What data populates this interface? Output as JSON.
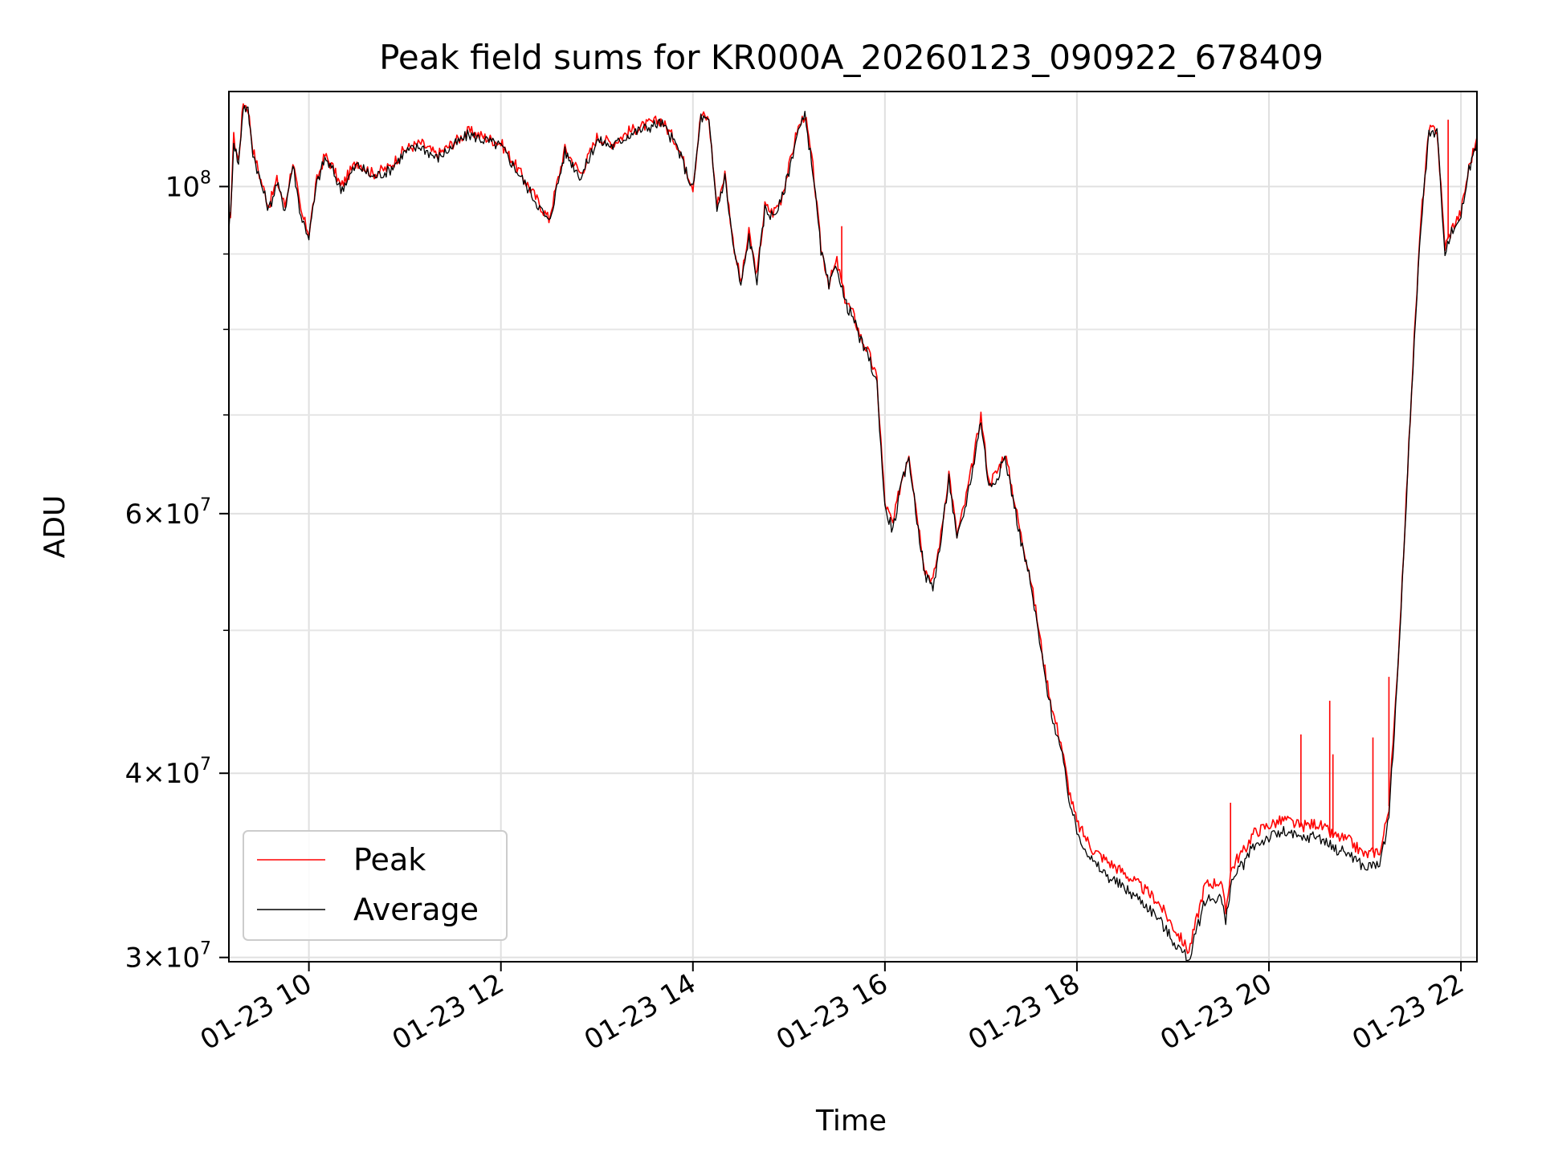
{
  "chart_data": {
    "type": "line",
    "title": "Peak field sums for KR000A_20260123_090922_678409",
    "xlabel": "Time",
    "ylabel": "ADU",
    "y_scale": "log",
    "grid": true,
    "legend_position": "lower-left",
    "xlim": [
      "2026-01-23 09:10",
      "2026-01-23 22:10"
    ],
    "ylim": [
      29800000,
      116000000
    ],
    "x_ticks": [
      "01-23 10",
      "01-23 12",
      "01-23 14",
      "01-23 16",
      "01-23 18",
      "01-23 20",
      "01-23 22"
    ],
    "y_ticks": [
      {
        "value": 30000000,
        "mantissa": "3",
        "exponent": "7"
      },
      {
        "value": 40000000,
        "mantissa": "4",
        "exponent": "7"
      },
      {
        "value": 60000000,
        "mantissa": "6",
        "exponent": "7"
      },
      {
        "value": 100000000,
        "mantissa": "",
        "exponent": "8"
      }
    ],
    "y_minor_ticks": [
      50000000,
      70000000,
      80000000,
      90000000
    ],
    "series": [
      {
        "name": "Peak",
        "color": "#ff0000",
        "x": [
          "09:10",
          "09:11",
          "09:13",
          "09:16",
          "09:19",
          "09:22",
          "09:25",
          "09:30",
          "09:35",
          "09:40",
          "09:45",
          "09:50",
          "09:55",
          "10:00",
          "10:05",
          "10:10",
          "10:15",
          "10:20",
          "10:25",
          "10:30",
          "10:40",
          "10:50",
          "11:00",
          "11:10",
          "11:20",
          "11:30",
          "11:40",
          "11:50",
          "12:00",
          "12:10",
          "12:20",
          "12:30",
          "12:40",
          "12:50",
          "13:00",
          "13:10",
          "13:20",
          "13:30",
          "13:40",
          "13:50",
          "14:00",
          "14:05",
          "14:10",
          "14:15",
          "14:20",
          "14:25",
          "14:30",
          "14:35",
          "14:40",
          "14:45",
          "14:50",
          "14:55",
          "15:00",
          "15:05",
          "15:10",
          "15:15",
          "15:20",
          "15:25",
          "15:30",
          "15:35",
          "15:40",
          "15:45",
          "15:50",
          "15:55",
          "16:00",
          "16:05",
          "16:10",
          "16:15",
          "16:20",
          "16:25",
          "16:30",
          "16:35",
          "16:40",
          "16:45",
          "16:50",
          "16:55",
          "17:00",
          "17:05",
          "17:10",
          "17:15",
          "17:20",
          "17:25",
          "17:30",
          "17:35",
          "17:40",
          "17:45",
          "17:50",
          "17:55",
          "18:00",
          "18:10",
          "18:20",
          "18:30",
          "18:40",
          "18:50",
          "19:00",
          "19:10",
          "19:20",
          "19:30",
          "19:33",
          "19:36",
          "19:40",
          "19:45",
          "19:50",
          "20:00",
          "20:10",
          "20:20",
          "20:30",
          "20:40",
          "20:50",
          "21:00",
          "21:10",
          "21:15",
          "21:20",
          "21:25",
          "21:30",
          "21:35",
          "21:40",
          "21:45",
          "21:50",
          "21:55",
          "22:00",
          "22:05",
          "22:10"
        ],
        "y": [
          94500000,
          96000000,
          108000000,
          104000000,
          114000000,
          113000000,
          106000000,
          101000000,
          97000000,
          101000000,
          97000000,
          104000000,
          96000000,
          93000000,
          101000000,
          105000000,
          103000000,
          100000000,
          102000000,
          104000000,
          102000000,
          103000000,
          106000000,
          107000000,
          105000000,
          107000000,
          109000000,
          108000000,
          107000000,
          103000000,
          99000000,
          95000000,
          106000000,
          102000000,
          108000000,
          107000000,
          109000000,
          110000000,
          111000000,
          107000000,
          100000000,
          112000000,
          111000000,
          97000000,
          102000000,
          92000000,
          86000000,
          93000000,
          87000000,
          97000000,
          96000000,
          98000000,
          103000000,
          109000000,
          112000000,
          103000000,
          91000000,
          86000000,
          89000000,
          84000000,
          82000000,
          79000000,
          77000000,
          74000000,
          61000000,
          59000000,
          63000000,
          66000000,
          60000000,
          55000000,
          54000000,
          58000000,
          64000000,
          58000000,
          61000000,
          65000000,
          70000000,
          63000000,
          64000000,
          66000000,
          62000000,
          58000000,
          55000000,
          51000000,
          47000000,
          44000000,
          42000000,
          39000000,
          37000000,
          35500000,
          34800000,
          34200000,
          33500000,
          32800000,
          31500000,
          30300000,
          33600000,
          33800000,
          32200000,
          34300000,
          35000000,
          35500000,
          36400000,
          36900000,
          37200000,
          36800000,
          37000000,
          36300000,
          36000000,
          35200000,
          35500000,
          38000000,
          46000000,
          59000000,
          76000000,
          95000000,
          109000000,
          109500000,
          91000000,
          94000000,
          96000000,
          103000000,
          108000000
        ],
        "spikes": [
          {
            "x": "15:33",
            "y": 94000000
          },
          {
            "x": "19:36",
            "y": 38200000
          },
          {
            "x": "20:20",
            "y": 42500000
          },
          {
            "x": "20:38",
            "y": 44800000
          },
          {
            "x": "20:40",
            "y": 41200000
          },
          {
            "x": "21:05",
            "y": 42300000
          },
          {
            "x": "21:15",
            "y": 46500000
          },
          {
            "x": "21:52",
            "y": 111000000
          }
        ]
      },
      {
        "name": "Average",
        "color": "#000000",
        "x": [
          "09:10",
          "09:11",
          "09:13",
          "09:16",
          "09:19",
          "09:22",
          "09:25",
          "09:30",
          "09:35",
          "09:40",
          "09:45",
          "09:50",
          "09:55",
          "10:00",
          "10:05",
          "10:10",
          "10:15",
          "10:20",
          "10:25",
          "10:30",
          "10:40",
          "10:50",
          "11:00",
          "11:10",
          "11:20",
          "11:30",
          "11:40",
          "11:50",
          "12:00",
          "12:10",
          "12:20",
          "12:30",
          "12:40",
          "12:50",
          "13:00",
          "13:10",
          "13:20",
          "13:30",
          "13:40",
          "13:50",
          "14:00",
          "14:05",
          "14:10",
          "14:15",
          "14:20",
          "14:25",
          "14:30",
          "14:35",
          "14:40",
          "14:45",
          "14:50",
          "14:55",
          "15:00",
          "15:05",
          "15:10",
          "15:15",
          "15:20",
          "15:25",
          "15:30",
          "15:35",
          "15:40",
          "15:45",
          "15:50",
          "15:55",
          "16:00",
          "16:05",
          "16:10",
          "16:15",
          "16:20",
          "16:25",
          "16:30",
          "16:35",
          "16:40",
          "16:45",
          "16:50",
          "16:55",
          "17:00",
          "17:05",
          "17:10",
          "17:15",
          "17:20",
          "17:25",
          "17:30",
          "17:35",
          "17:40",
          "17:45",
          "17:50",
          "17:55",
          "18:00",
          "18:10",
          "18:20",
          "18:30",
          "18:40",
          "18:50",
          "19:00",
          "19:10",
          "19:20",
          "19:30",
          "19:33",
          "19:36",
          "19:40",
          "19:45",
          "19:50",
          "20:00",
          "20:10",
          "20:20",
          "20:30",
          "20:40",
          "20:50",
          "21:00",
          "21:10",
          "21:15",
          "21:20",
          "21:25",
          "21:30",
          "21:35",
          "21:40",
          "21:45",
          "21:50",
          "21:55",
          "22:00",
          "22:05",
          "22:10"
        ],
        "y": [
          94000000,
          95500000,
          107500000,
          103500000,
          113500000,
          112500000,
          105500000,
          100500000,
          96500000,
          100500000,
          96500000,
          103500000,
          95500000,
          92500000,
          100500000,
          104500000,
          102500000,
          99500000,
          101500000,
          103500000,
          101500000,
          102500000,
          105500000,
          106500000,
          104500000,
          106500000,
          108500000,
          107500000,
          106500000,
          102500000,
          98500000,
          94500000,
          105500000,
          101500000,
          107500000,
          106500000,
          108500000,
          109500000,
          110500000,
          106500000,
          99500000,
          111500000,
          110500000,
          96500000,
          101500000,
          91500000,
          85500000,
          92500000,
          86500000,
          96500000,
          95500000,
          97500000,
          102500000,
          108500000,
          111500000,
          102500000,
          90500000,
          85500000,
          88500000,
          83500000,
          81500000,
          78500000,
          76500000,
          73500000,
          60500000,
          58500000,
          62500000,
          65500000,
          59500000,
          54500000,
          53500000,
          57500000,
          63500000,
          57500000,
          60500000,
          64500000,
          69500000,
          62500000,
          63500000,
          65500000,
          61500000,
          57500000,
          54500000,
          50500000,
          46500000,
          43500000,
          41500000,
          38500000,
          36500000,
          34800000,
          34000000,
          33400000,
          32800000,
          32000000,
          30800000,
          29900000,
          32800000,
          33000000,
          31600000,
          33600000,
          34300000,
          34800000,
          35700000,
          36200000,
          36500000,
          36100000,
          36300000,
          35600000,
          35300000,
          34500000,
          34800000,
          37500000,
          45500000,
          58500000,
          75500000,
          94500000,
          108500000,
          109000000,
          90500000,
          93500000,
          95500000,
          102500000,
          107500000
        ]
      }
    ]
  }
}
